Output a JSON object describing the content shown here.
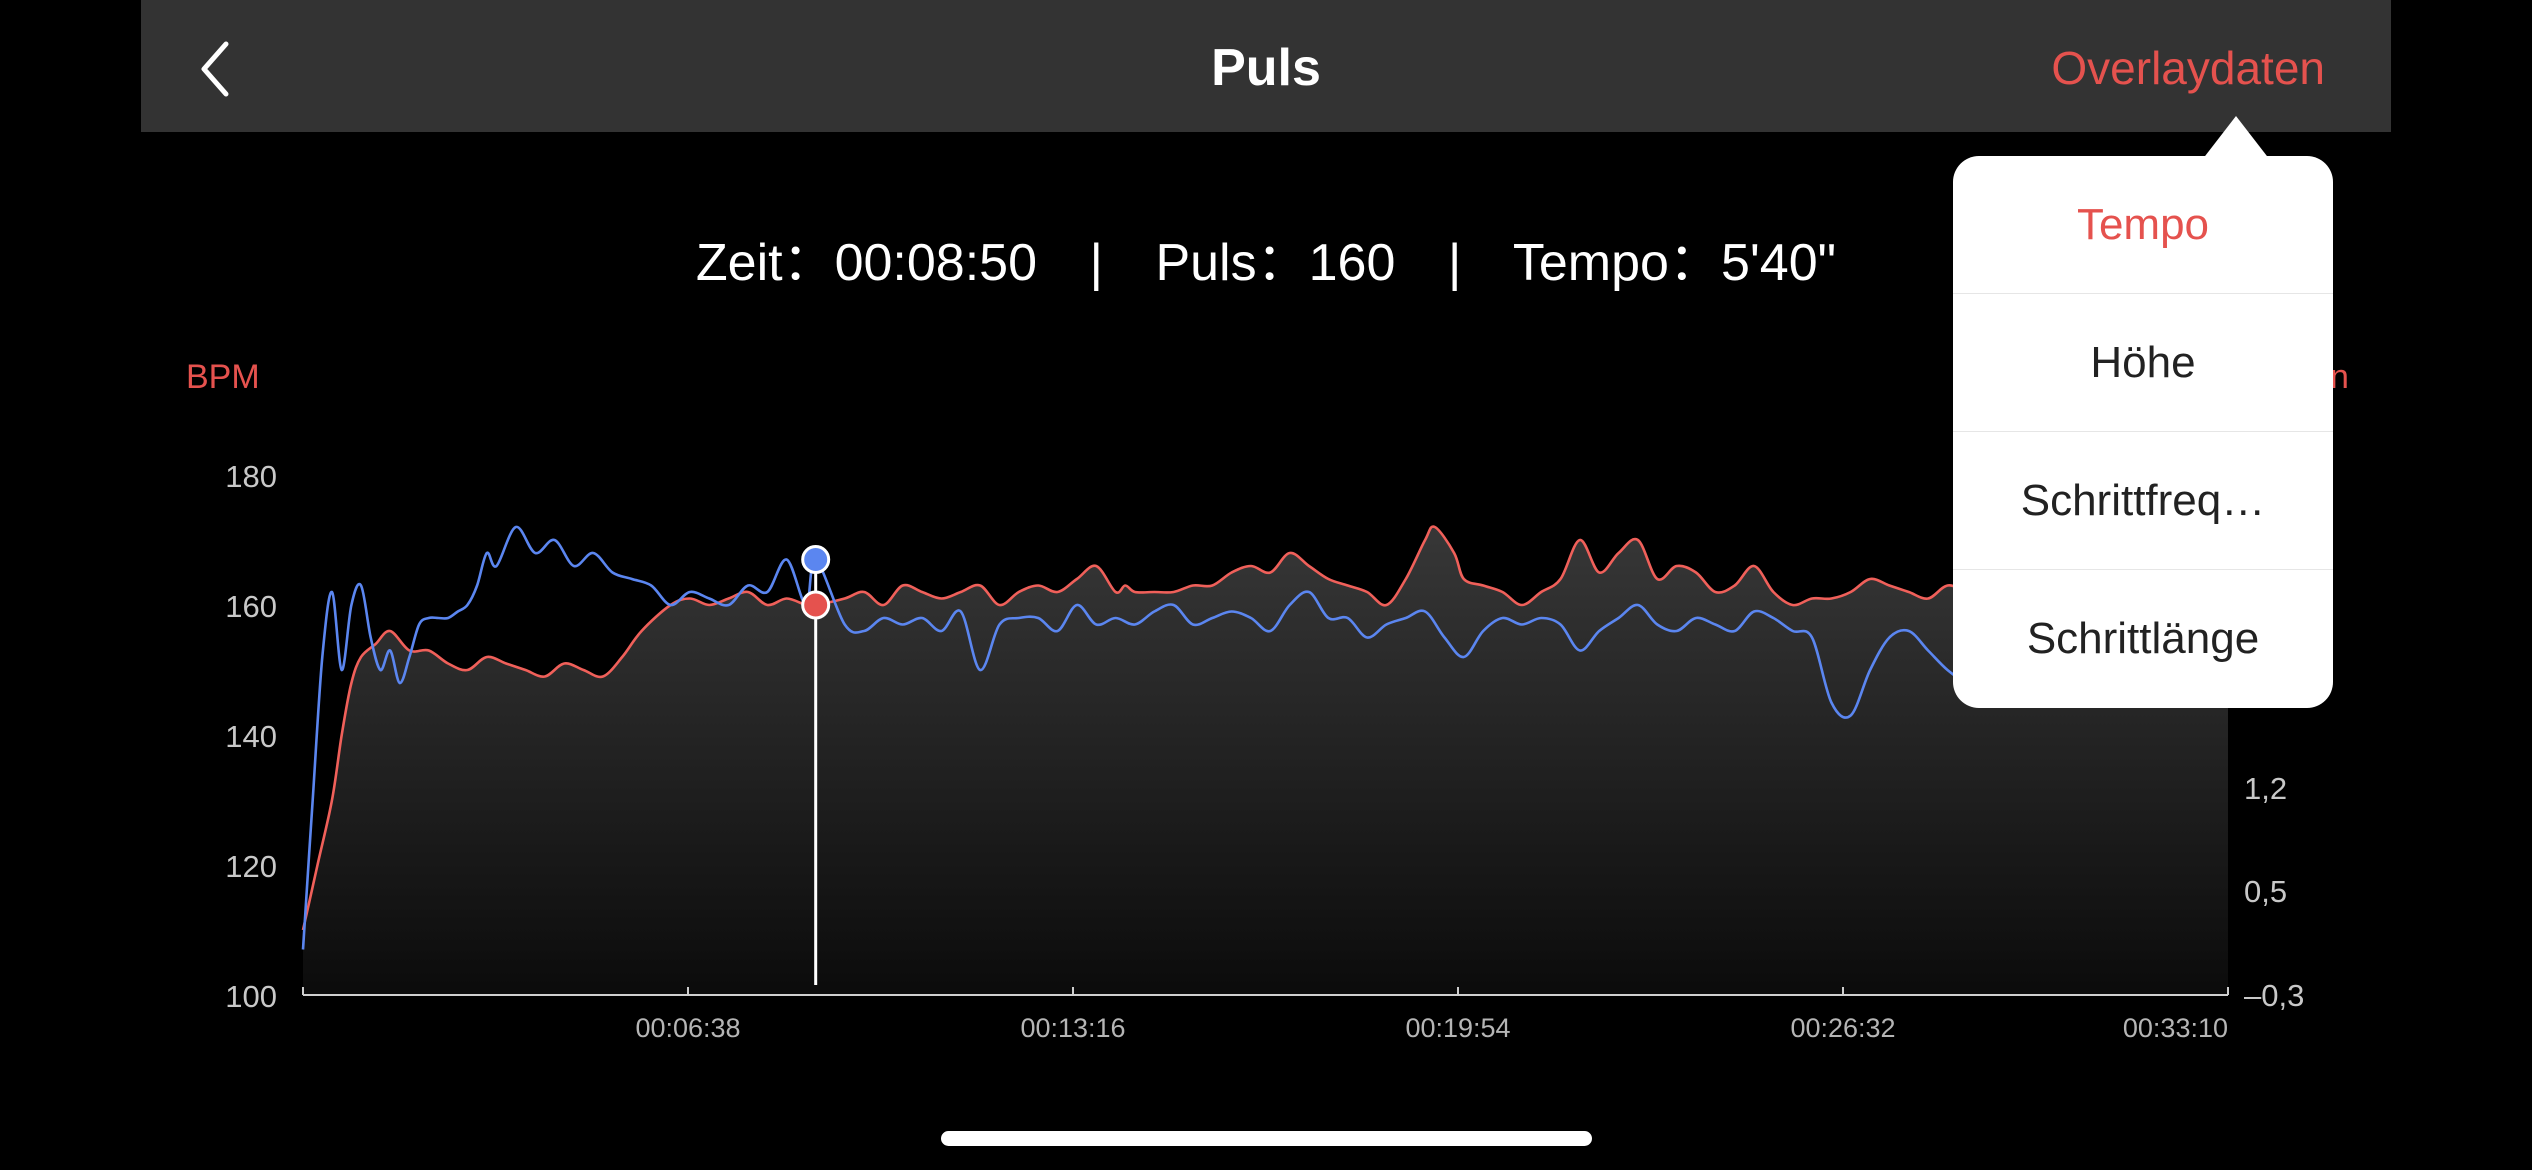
{
  "nav": {
    "title": "Puls",
    "overlay_label": "Overlaydaten",
    "back_icon": "chevron-left-icon"
  },
  "readout": {
    "time_label": "Zeit：",
    "time_value": "00:08:50",
    "pulse_label": "Puls：",
    "pulse_value": "160",
    "pace_label": "Tempo：",
    "pace_value": "5'40\"",
    "separator": "|"
  },
  "units": {
    "left": "BPM",
    "right_partial": "n"
  },
  "dropdown": {
    "items": [
      {
        "label": "Tempo",
        "selected": true
      },
      {
        "label": "Höhe",
        "selected": false
      },
      {
        "label": "Schrittfreq…",
        "selected": false
      },
      {
        "label": "Schrittlänge",
        "selected": false
      }
    ]
  },
  "colors": {
    "accent": "#e5524e",
    "pulse_line": "#f0605a",
    "overlay_line": "#5b86f0",
    "navbar": "#333333"
  },
  "chart_data": {
    "type": "line",
    "ylabel": "BPM",
    "ylim": [
      100,
      180
    ],
    "yticks": [
      "180",
      "160",
      "140",
      "120",
      "100"
    ],
    "y2ticks": [
      "1,2",
      "0,5",
      "–0,3"
    ],
    "xticks": [
      "00:06:38",
      "00:13:16",
      "00:19:54",
      "00:26:32",
      "00:33:10"
    ],
    "xlim_seconds": [
      0,
      1990
    ],
    "cursor": {
      "x_seconds": 530,
      "pulse": 160,
      "overlay_value_bpm_scale": 167
    },
    "series": [
      {
        "key": "pulse",
        "color": "#f0605a",
        "x": [
          0,
          15,
          30,
          40,
          50,
          60,
          75,
          90,
          110,
          130,
          150,
          170,
          190,
          210,
          230,
          250,
          270,
          290,
          310,
          330,
          350,
          380,
          400,
          420,
          440,
          460,
          480,
          500,
          520,
          530,
          560,
          580,
          600,
          620,
          640,
          660,
          680,
          700,
          720,
          740,
          760,
          780,
          800,
          820,
          840,
          850,
          860,
          880,
          900,
          920,
          940,
          960,
          980,
          1000,
          1020,
          1040,
          1060,
          1080,
          1100,
          1120,
          1140,
          1160,
          1170,
          1190,
          1200,
          1220,
          1240,
          1260,
          1280,
          1300,
          1320,
          1340,
          1360,
          1380,
          1400,
          1420,
          1440,
          1460,
          1480,
          1500,
          1520,
          1540,
          1560,
          1580,
          1600,
          1620,
          1640,
          1660,
          1680,
          1700,
          1720,
          1740,
          1760,
          1780,
          1800,
          1820,
          1840,
          1860,
          1880,
          1900,
          1920,
          1940,
          1960,
          1990
        ],
        "y": [
          110,
          120,
          130,
          140,
          148,
          152,
          154,
          156,
          153,
          153,
          151,
          150,
          152,
          151,
          150,
          149,
          151,
          150,
          149,
          152,
          156,
          160,
          161,
          160,
          161,
          162,
          160,
          161,
          160,
          160,
          161,
          162,
          160,
          163,
          162,
          161,
          162,
          163,
          160,
          162,
          163,
          162,
          164,
          166,
          162,
          163,
          162,
          162,
          162,
          163,
          163,
          165,
          166,
          165,
          168,
          166,
          164,
          163,
          162,
          160,
          164,
          170,
          172,
          168,
          164,
          163,
          162,
          160,
          162,
          164,
          170,
          165,
          168,
          170,
          164,
          166,
          165,
          162,
          163,
          166,
          162,
          160,
          161,
          161,
          162,
          164,
          163,
          162,
          161,
          163,
          162,
          161,
          160,
          162,
          162,
          161,
          159,
          160,
          161,
          160,
          162,
          161,
          160,
          161
        ]
      },
      {
        "key": "overlay",
        "color": "#5b86f0",
        "x": [
          0,
          10,
          20,
          30,
          40,
          50,
          60,
          70,
          80,
          90,
          100,
          110,
          120,
          130,
          140,
          150,
          160,
          170,
          180,
          190,
          200,
          220,
          240,
          260,
          280,
          300,
          320,
          340,
          360,
          380,
          400,
          420,
          440,
          460,
          480,
          500,
          520,
          530,
          560,
          580,
          600,
          620,
          640,
          660,
          680,
          700,
          720,
          740,
          760,
          780,
          800,
          820,
          840,
          860,
          880,
          900,
          920,
          940,
          960,
          980,
          1000,
          1020,
          1040,
          1060,
          1080,
          1100,
          1120,
          1140,
          1160,
          1180,
          1200,
          1220,
          1240,
          1260,
          1280,
          1300,
          1320,
          1340,
          1360,
          1380,
          1400,
          1420,
          1440,
          1460,
          1480,
          1500,
          1520,
          1540,
          1560,
          1580,
          1600,
          1620,
          1640,
          1660,
          1680,
          1700,
          1720,
          1740,
          1760,
          1780,
          1800,
          1820,
          1840,
          1860,
          1880,
          1900,
          1920,
          1940,
          1960,
          1990
        ],
        "y": [
          107,
          130,
          152,
          162,
          150,
          160,
          163,
          155,
          150,
          153,
          148,
          152,
          157,
          158,
          158,
          158,
          159,
          160,
          163,
          168,
          166,
          172,
          168,
          170,
          166,
          168,
          165,
          164,
          163,
          160,
          162,
          161,
          160,
          163,
          162,
          167,
          160,
          167,
          157,
          156,
          158,
          157,
          158,
          156,
          159,
          150,
          157,
          158,
          158,
          156,
          160,
          157,
          158,
          157,
          159,
          160,
          157,
          158,
          159,
          158,
          156,
          160,
          162,
          158,
          158,
          155,
          157,
          158,
          159,
          155,
          152,
          156,
          158,
          157,
          158,
          157,
          153,
          156,
          158,
          160,
          157,
          156,
          158,
          157,
          156,
          159,
          158,
          156,
          155,
          145,
          143,
          150,
          155,
          156,
          153,
          150,
          148,
          147,
          146,
          145,
          147,
          146,
          147,
          148,
          147,
          146,
          147,
          147,
          146,
          146
        ]
      }
    ]
  }
}
